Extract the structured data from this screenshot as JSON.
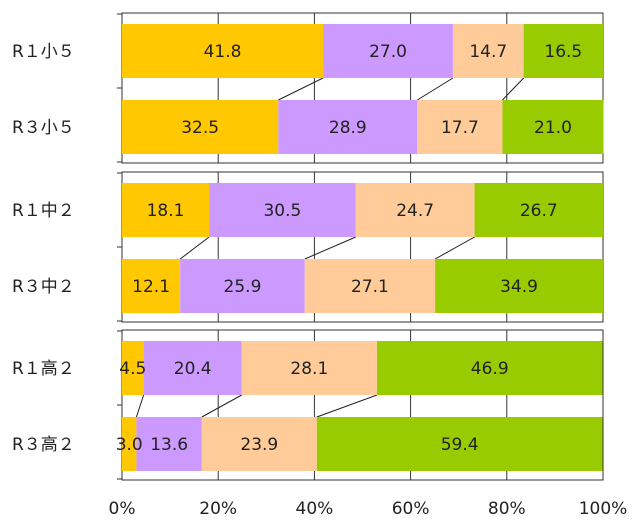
{
  "chart_data": {
    "type": "bar",
    "orientation": "horizontal",
    "stacked": "percent",
    "xlim": [
      0,
      100
    ],
    "x_ticks": [
      "0%",
      "20%",
      "40%",
      "60%",
      "80%",
      "100%"
    ],
    "segment_colors": [
      "#FFC800",
      "#CC99FF",
      "#FFCC99",
      "#99CC00"
    ],
    "groups": [
      {
        "rows": [
          {
            "label": "R１小５",
            "values": [
              41.8,
              27.0,
              14.7,
              16.5
            ],
            "text": [
              "41.8",
              "27.0",
              "14.7",
              "16.5"
            ]
          },
          {
            "label": "R３小５",
            "values": [
              32.5,
              28.9,
              17.7,
              21.0
            ],
            "text": [
              "32.5",
              "28.9",
              "17.7",
              "21.0"
            ]
          }
        ]
      },
      {
        "rows": [
          {
            "label": "R１中２",
            "values": [
              18.1,
              30.5,
              24.7,
              26.7
            ],
            "text": [
              "18.1",
              "30.5",
              "24.7",
              "26.7"
            ]
          },
          {
            "label": "R３中２",
            "values": [
              12.1,
              25.9,
              27.1,
              34.9
            ],
            "text": [
              "12.1",
              "25.9",
              "27.1",
              "34.9"
            ]
          }
        ]
      },
      {
        "rows": [
          {
            "label": "R１高２",
            "values": [
              4.5,
              20.4,
              28.1,
              46.9
            ],
            "text": [
              "4.5",
              "20.4",
              "28.1",
              "46.9"
            ]
          },
          {
            "label": "R３高２",
            "values": [
              3.0,
              13.6,
              23.9,
              59.4
            ],
            "text": [
              "3.0",
              "13.6",
              "23.9",
              "59.4"
            ]
          }
        ]
      }
    ]
  }
}
